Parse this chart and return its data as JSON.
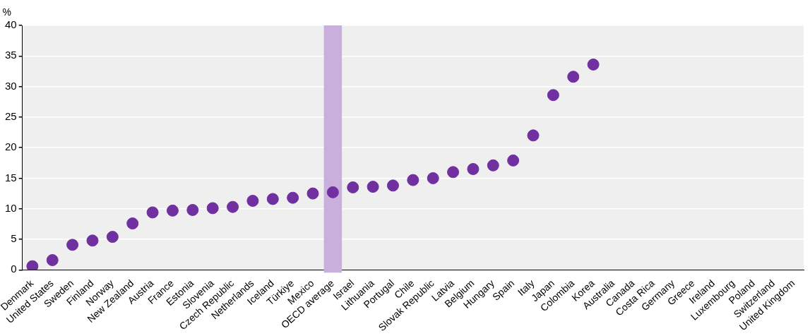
{
  "chart_data": {
    "type": "scatter",
    "ylabel": "%",
    "categories": [
      "Denmark",
      "United States",
      "Sweden",
      "Finland",
      "Norway",
      "New Zealand",
      "Austria",
      "France",
      "Estonia",
      "Slovenia",
      "Czech Republic",
      "Netherlands",
      "Iceland",
      "Türkiye",
      "Mexico",
      "OECD average",
      "Israel",
      "Lithuania",
      "Portugal",
      "Chile",
      "Slovak Republic",
      "Latvia",
      "Belgium",
      "Hungary",
      "Spain",
      "Italy",
      "Japan",
      "Colombia",
      "Korea",
      "Australia",
      "Canada",
      "Costa Rica",
      "Germany",
      "Greece",
      "Ireland",
      "Luxembourg",
      "Poland",
      "Switzerland",
      "United Kingdom"
    ],
    "series": [
      {
        "color": "#7030a0",
        "values": [
          0.6,
          1.6,
          4.1,
          4.8,
          5.4,
          7.6,
          9.4,
          9.7,
          9.8,
          10.1,
          10.3,
          11.3,
          11.6,
          11.8,
          12.5,
          12.7,
          13.5,
          13.6,
          13.8,
          14.7,
          15.0,
          16.0,
          16.5,
          17.1,
          17.9,
          22.0,
          28.6,
          31.6,
          33.6,
          null,
          null,
          null,
          null,
          null,
          null,
          null,
          null,
          null,
          null
        ]
      }
    ],
    "bands": [
      {
        "axis": "x",
        "from": "OECD average",
        "to": "OECD average",
        "color": "#c9b0dc"
      }
    ],
    "ylim": [
      0,
      40
    ],
    "yticks": [
      0,
      5,
      10,
      15,
      20,
      25,
      30,
      35,
      40
    ],
    "grid": "y",
    "marker": "circle",
    "legend": false
  }
}
